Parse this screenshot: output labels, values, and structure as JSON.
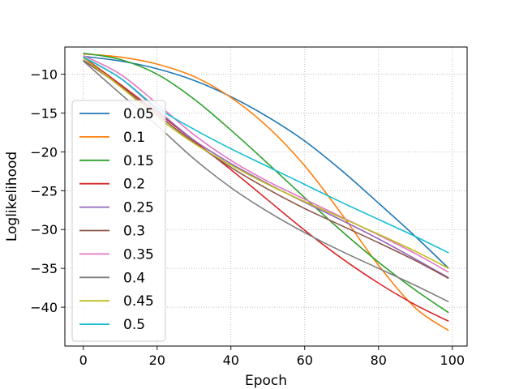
{
  "chart_data": {
    "type": "line",
    "title": "",
    "xlabel": "Epoch",
    "ylabel": "Loglikelihood",
    "xlim": [
      -5,
      104
    ],
    "ylim": [
      -45,
      -6.5
    ],
    "xticks": [
      0,
      20,
      40,
      60,
      80,
      100
    ],
    "yticks": [
      -10,
      -15,
      -20,
      -25,
      -30,
      -35,
      -40
    ],
    "grid": true,
    "legend_position": "lower-left",
    "series": [
      {
        "name": "0.05",
        "color": "#1f77b4",
        "x": [
          0,
          10,
          20,
          30,
          40,
          50,
          60,
          70,
          80,
          90,
          99
        ],
        "y": [
          -7.7,
          -8.3,
          -9.3,
          -10.8,
          -12.9,
          -15.5,
          -18.6,
          -22.4,
          -26.6,
          -30.9,
          -35.0
        ]
      },
      {
        "name": "0.1",
        "color": "#ff7f0e",
        "x": [
          0,
          10,
          20,
          30,
          40,
          50,
          60,
          70,
          80,
          90,
          99
        ],
        "y": [
          -7.4,
          -7.8,
          -8.7,
          -10.3,
          -13.0,
          -16.8,
          -21.8,
          -28.0,
          -34.6,
          -40.1,
          -43.0
        ]
      },
      {
        "name": "0.15",
        "color": "#2ca02c",
        "x": [
          0,
          10,
          20,
          30,
          40,
          50,
          60,
          70,
          80,
          90,
          99
        ],
        "y": [
          -7.3,
          -8.1,
          -10.0,
          -13.2,
          -17.2,
          -21.5,
          -25.9,
          -30.2,
          -34.2,
          -37.8,
          -40.7
        ]
      },
      {
        "name": "0.2",
        "color": "#d62728",
        "x": [
          0,
          10,
          20,
          30,
          40,
          50,
          60,
          70,
          80,
          90,
          99
        ],
        "y": [
          -7.8,
          -11.3,
          -14.9,
          -18.6,
          -22.3,
          -26.2,
          -30.1,
          -33.7,
          -36.9,
          -39.7,
          -41.8
        ]
      },
      {
        "name": "0.25",
        "color": "#9467bd",
        "x": [
          0,
          10,
          20,
          30,
          40,
          50,
          60,
          70,
          80,
          90,
          99
        ],
        "y": [
          -7.8,
          -10.5,
          -14.6,
          -18.5,
          -21.5,
          -24.1,
          -26.5,
          -28.8,
          -31.2,
          -33.8,
          -36.2
        ]
      },
      {
        "name": "0.3",
        "color": "#8c564b",
        "x": [
          0,
          10,
          20,
          30,
          40,
          50,
          60,
          70,
          80,
          90,
          99
        ],
        "y": [
          -8.2,
          -11.5,
          -15.2,
          -18.8,
          -22.0,
          -24.8,
          -27.3,
          -29.5,
          -31.7,
          -34.0,
          -36.3
        ]
      },
      {
        "name": "0.35",
        "color": "#e377c2",
        "x": [
          0,
          10,
          20,
          30,
          40,
          50,
          60,
          70,
          80,
          90,
          99
        ],
        "y": [
          -7.6,
          -10.0,
          -13.8,
          -17.8,
          -21.1,
          -23.8,
          -26.1,
          -28.4,
          -30.7,
          -33.1,
          -35.5
        ]
      },
      {
        "name": "0.4",
        "color": "#7f7f7f",
        "x": [
          0,
          10,
          20,
          30,
          40,
          50,
          60,
          70,
          80,
          90,
          99
        ],
        "y": [
          -8.3,
          -12.5,
          -16.6,
          -20.9,
          -24.6,
          -27.7,
          -30.4,
          -32.8,
          -35.0,
          -37.2,
          -39.3
        ]
      },
      {
        "name": "0.45",
        "color": "#bcbd22",
        "x": [
          0,
          10,
          20,
          30,
          40,
          50,
          60,
          70,
          80,
          90,
          99
        ],
        "y": [
          -7.9,
          -11.6,
          -15.5,
          -18.9,
          -21.7,
          -24.2,
          -26.4,
          -28.5,
          -30.6,
          -32.8,
          -35.0
        ]
      },
      {
        "name": "0.5",
        "color": "#17becf",
        "x": [
          0,
          10,
          20,
          30,
          40,
          50,
          60,
          70,
          80,
          90,
          99
        ],
        "y": [
          -7.8,
          -10.5,
          -14.3,
          -17.1,
          -19.6,
          -21.9,
          -24.2,
          -26.5,
          -28.7,
          -30.9,
          -33.0
        ]
      }
    ]
  }
}
